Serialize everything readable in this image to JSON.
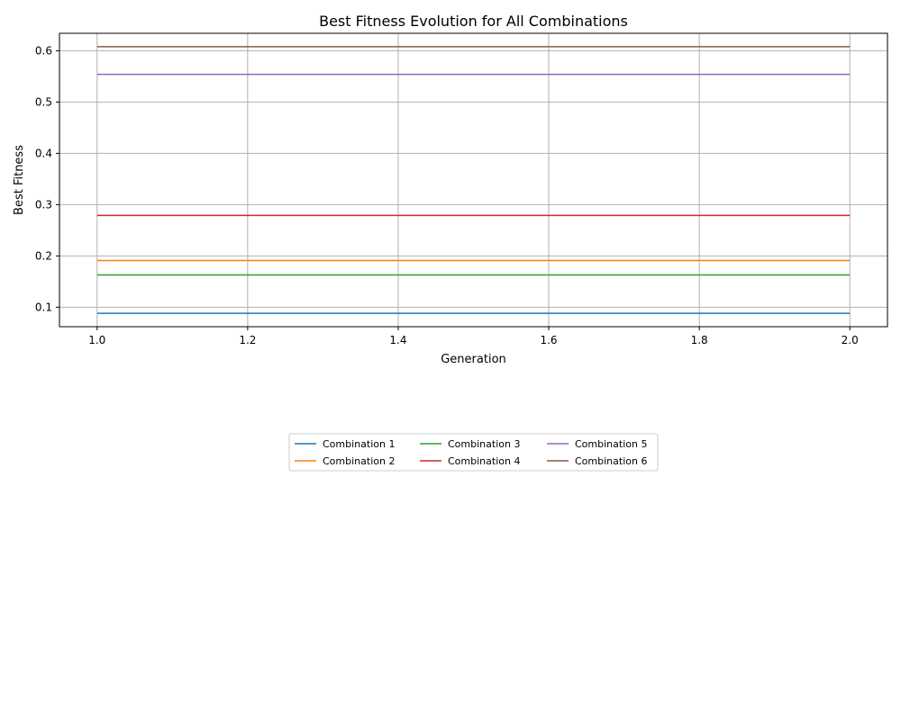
{
  "chart_data": {
    "type": "line",
    "title": "Best Fitness Evolution for All Combinations",
    "xlabel": "Generation",
    "ylabel": "Best Fitness",
    "xlim": [
      0.95,
      2.05
    ],
    "ylim": [
      0.062,
      0.634
    ],
    "xticks": [
      1.0,
      1.2,
      1.4,
      1.6,
      1.8,
      2.0
    ],
    "xtick_labels": [
      "1.0",
      "1.2",
      "1.4",
      "1.6",
      "1.8",
      "2.0"
    ],
    "yticks": [
      0.1,
      0.2,
      0.3,
      0.4,
      0.5,
      0.6
    ],
    "ytick_labels": [
      "0.1",
      "0.2",
      "0.3",
      "0.4",
      "0.5",
      "0.6"
    ],
    "grid": true,
    "legend_position": "bottom-center",
    "x": [
      1.0,
      2.0
    ],
    "series": [
      {
        "name": "Combination 1",
        "values": [
          0.088,
          0.088
        ],
        "color": "#1f77b4"
      },
      {
        "name": "Combination 2",
        "values": [
          0.191,
          0.191
        ],
        "color": "#ff7f0e"
      },
      {
        "name": "Combination 3",
        "values": [
          0.163,
          0.163
        ],
        "color": "#2ca02c"
      },
      {
        "name": "Combination 4",
        "values": [
          0.279,
          0.279
        ],
        "color": "#d62728"
      },
      {
        "name": "Combination 5",
        "values": [
          0.554,
          0.554
        ],
        "color": "#9467bd"
      },
      {
        "name": "Combination 6",
        "values": [
          0.608,
          0.608
        ],
        "color": "#8c564b"
      }
    ]
  }
}
